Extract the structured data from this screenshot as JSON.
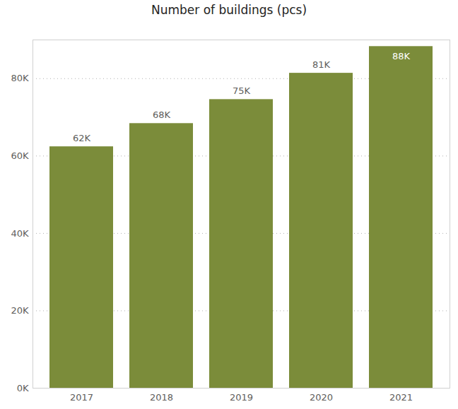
{
  "chart_data": {
    "type": "bar",
    "title": "Number of buildings (pcs)",
    "categories": [
      "2017",
      "2018",
      "2019",
      "2020",
      "2021"
    ],
    "values": [
      62400,
      68400,
      74600,
      81400,
      88300
    ],
    "value_labels": [
      "62K",
      "68K",
      "75K",
      "81K",
      "88K"
    ],
    "color": "#7b8c3a",
    "ylim": [
      0,
      90000
    ],
    "yticks": [
      {
        "value": 0,
        "label": "0K"
      },
      {
        "value": 20000,
        "label": "20K"
      },
      {
        "value": 40000,
        "label": "40K"
      },
      {
        "value": 60000,
        "label": "60K"
      },
      {
        "value": 80000,
        "label": "80K"
      }
    ],
    "grid": true,
    "data_labels": true
  }
}
